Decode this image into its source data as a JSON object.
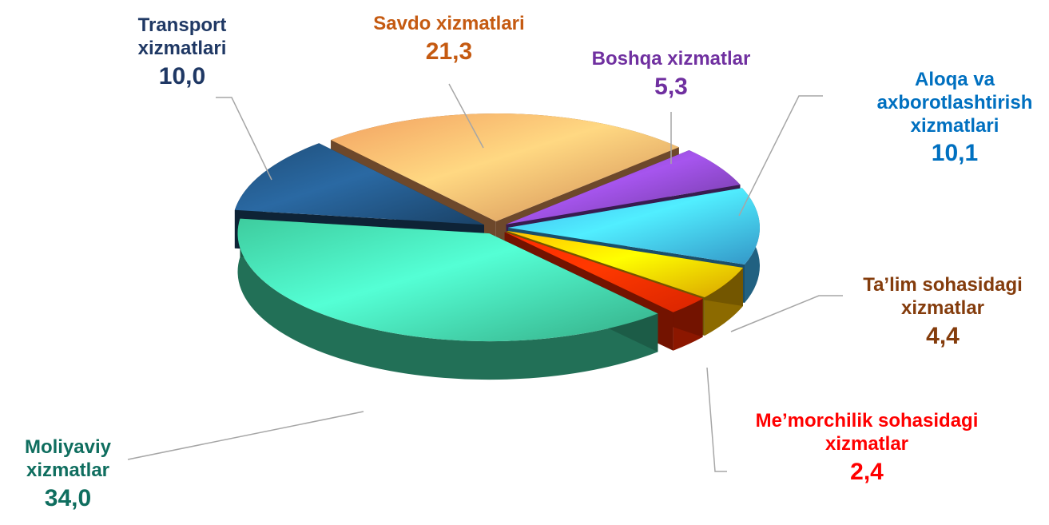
{
  "chart_data": {
    "type": "pie3d",
    "categories": [
      "Savdo xizmatlari",
      "Boshqa xizmatlar",
      "Aloqa va axborotlashtirish xizmatlari",
      "Ta’lim sohasidagi xizmatlar",
      "Me’morchilik sohasidagi xizmatlar",
      "Moliyaviy xizmatlar",
      "Transport xizmatlari"
    ],
    "values": [
      21.3,
      5.3,
      10.1,
      4.4,
      2.4,
      34.0,
      10.0
    ],
    "value_labels": [
      "21,3",
      "5,3",
      "10,1",
      "4,4",
      "2,4",
      "34,0",
      "10,0"
    ],
    "colors": [
      "#f2a060",
      "#7b3fb0",
      "#3cb0ea",
      "#ffc000",
      "#ff2a00",
      "#3ecc9e",
      "#1f4e79"
    ],
    "label_colors": [
      "#c55a11",
      "#7030a0",
      "#0070c0",
      "#843c0c",
      "#ff0000",
      "#0f6e5f",
      "#1f3864"
    ]
  }
}
